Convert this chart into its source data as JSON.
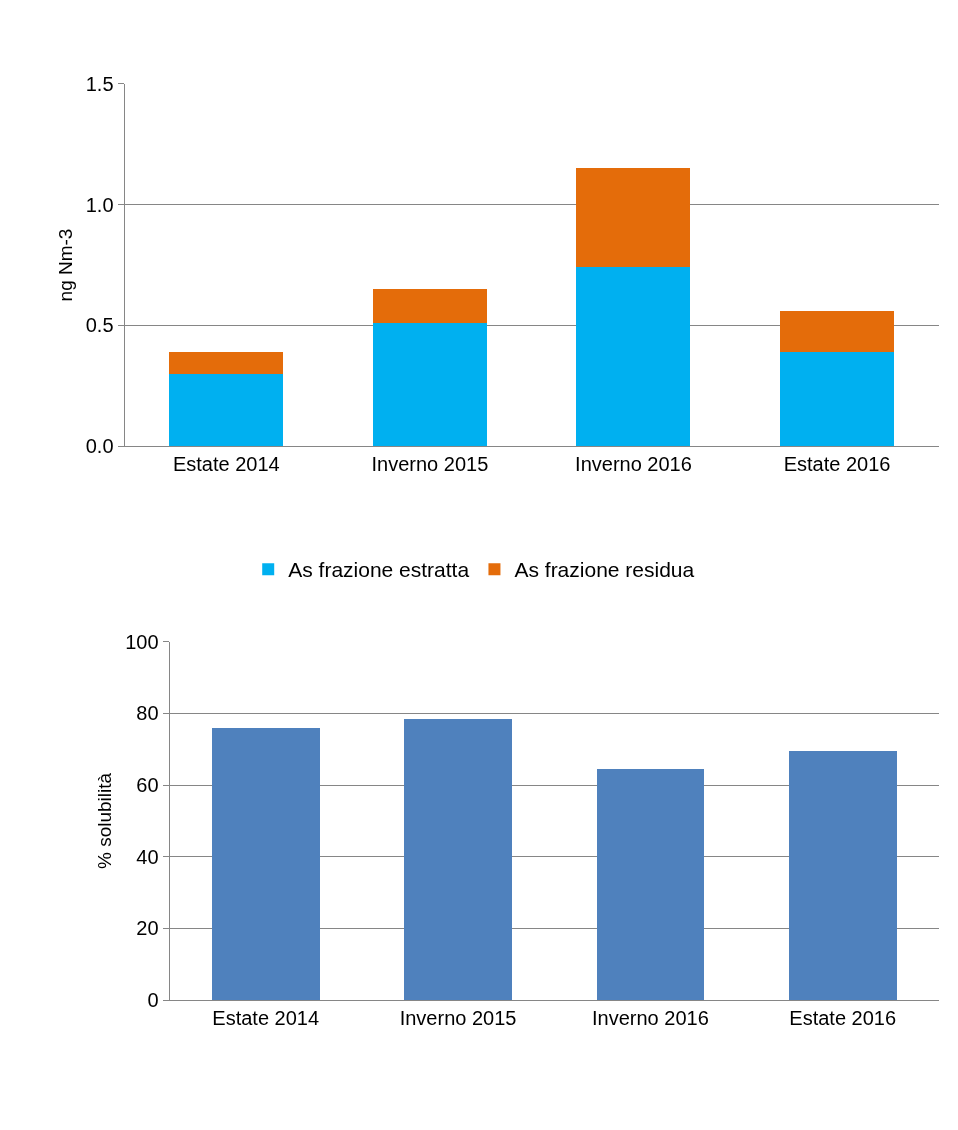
{
  "chart_data": [
    {
      "type": "bar",
      "ylabel": "ng Nm-3",
      "categories": [
        "Estate 2014",
        "Inverno 2015",
        "Inverno 2016",
        "Estate 2016"
      ],
      "stacked": true,
      "series": [
        {
          "name": "As frazione estratta",
          "color": "#00b0f0",
          "values": [
            0.3,
            0.51,
            0.74,
            0.39
          ]
        },
        {
          "name": "As frazione residua",
          "color": "#e46c0a",
          "values": [
            0.09,
            0.14,
            0.41,
            0.17
          ]
        }
      ],
      "ylim": [
        0,
        1.5
      ],
      "yticks": [
        {
          "value": 0,
          "label": "0.0"
        },
        {
          "value": 0.5,
          "label": "0.5"
        },
        {
          "value": 1.0,
          "label": "1.0"
        },
        {
          "value": 1.5,
          "label": "1.5"
        }
      ],
      "grid": "y",
      "legend": "bottom"
    },
    {
      "type": "bar",
      "ylabel": "% solubilità",
      "categories": [
        "Estate 2014",
        "Inverno 2015",
        "Inverno 2016",
        "Estate 2016"
      ],
      "series": [
        {
          "color": "#4f81bd",
          "values": [
            76,
            78.4,
            64.4,
            69.6
          ]
        }
      ],
      "ylim": [
        0,
        100
      ],
      "yticks": [
        0,
        20,
        40,
        60,
        80,
        100
      ],
      "grid": "y"
    }
  ]
}
